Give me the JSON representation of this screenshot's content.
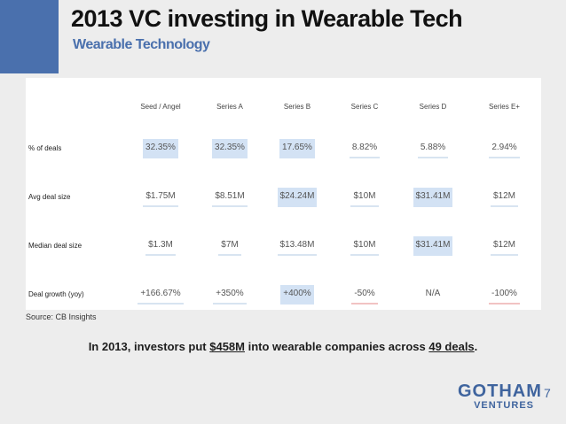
{
  "slide": {
    "title": "2013 VC investing in Wearable Tech",
    "subtitle": "Wearable Technology",
    "source": "Source: CB Insights",
    "summary": {
      "part1": "In 2013, investors put ",
      "amount": "$458M",
      "part2": " into wearable companies across ",
      "deals": "49 deals",
      "part3": "."
    },
    "logo_line1": "GOTHAM",
    "logo_line2": "VENTURES",
    "page_number": "7",
    "accent_color": "#4a70ad"
  },
  "table": {
    "headers": [
      "",
      "Seed / Angel",
      "Series A",
      "Series B",
      "Series C",
      "Series D",
      "Series E+"
    ],
    "rows": [
      {
        "label": "% of deals",
        "cells": [
          "32.35%",
          "32.35%",
          "17.65%",
          "8.82%",
          "5.88%",
          "2.94%"
        ]
      },
      {
        "label": "Avg deal size",
        "cells": [
          "$1.75M",
          "$8.51M",
          "$24.24M",
          "$10M",
          "$31.41M",
          "$12M"
        ]
      },
      {
        "label": "Median deal size",
        "cells": [
          "$1.3M",
          "$7M",
          "$13.48M",
          "$10M",
          "$31.41M",
          "$12M"
        ]
      },
      {
        "label": "Deal growth (yoy)",
        "cells": [
          "+166.67%",
          "+350%",
          "+400%",
          "-50%",
          "N/A",
          "-100%"
        ]
      }
    ]
  }
}
